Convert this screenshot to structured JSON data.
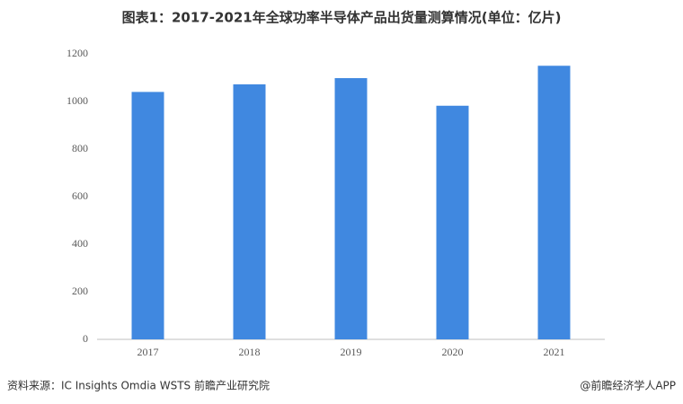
{
  "chart_data": {
    "type": "bar",
    "title": "图表1：2017-2021年全球功率半导体产品出货量测算情况(单位：亿片)",
    "categories": [
      "2017",
      "2018",
      "2019",
      "2020",
      "2021"
    ],
    "values": [
      1040,
      1072,
      1098,
      982,
      1150
    ],
    "color": "#4088e0",
    "ylim": [
      0,
      1200
    ],
    "yticks": [
      0,
      200,
      400,
      600,
      800,
      1000,
      1200
    ],
    "grid": false,
    "source": "资料来源：IC Insights Omdia WSTS 前瞻产业研究院",
    "credit": "@前瞻经济学人APP"
  }
}
